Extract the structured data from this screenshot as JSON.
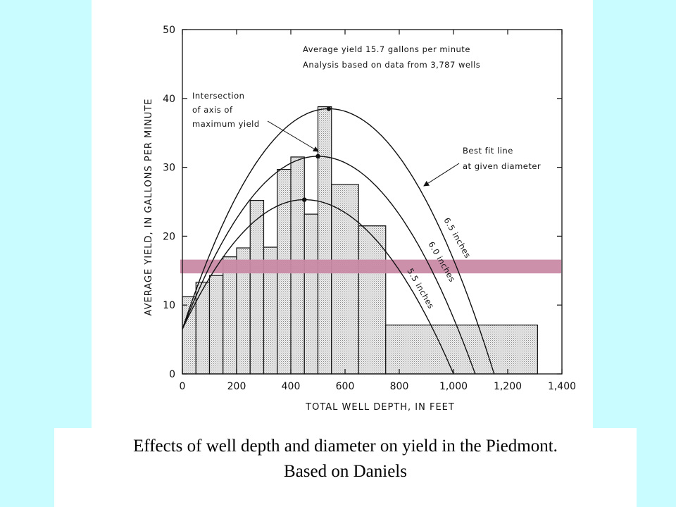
{
  "caption": {
    "line1": "Effects of well depth and diameter on yield in the Piedmont.",
    "line2": "Based on Daniels"
  },
  "colors": {
    "background": "#c8fcfe",
    "highlight_band": "#c98aa6",
    "bar_fill": "#dcdcdc"
  },
  "chart_data": {
    "type": "bar",
    "title": "",
    "xlabel": "TOTAL WELL DEPTH, IN FEET",
    "ylabel": "AVERAGE YIELD, IN GALLONS PER MINUTE",
    "xlim": [
      0,
      1400
    ],
    "ylim": [
      0,
      50
    ],
    "x_ticks": [
      "0",
      "200",
      "400",
      "600",
      "800",
      "1,000",
      "1,200",
      "1,400"
    ],
    "y_ticks": [
      "0",
      "10",
      "20",
      "30",
      "40",
      "50"
    ],
    "grid": false,
    "bars": [
      {
        "x0": 0,
        "x1": 50,
        "y": 11.2
      },
      {
        "x0": 50,
        "x1": 100,
        "y": 13.3
      },
      {
        "x0": 100,
        "x1": 150,
        "y": 14.3
      },
      {
        "x0": 150,
        "x1": 200,
        "y": 17.0
      },
      {
        "x0": 200,
        "x1": 250,
        "y": 18.3
      },
      {
        "x0": 250,
        "x1": 300,
        "y": 25.2
      },
      {
        "x0": 300,
        "x1": 350,
        "y": 18.4
      },
      {
        "x0": 350,
        "x1": 400,
        "y": 29.7
      },
      {
        "x0": 400,
        "x1": 450,
        "y": 31.5
      },
      {
        "x0": 450,
        "x1": 500,
        "y": 23.2
      },
      {
        "x0": 500,
        "x1": 550,
        "y": 38.8
      },
      {
        "x0": 550,
        "x1": 650,
        "y": 27.5
      },
      {
        "x0": 650,
        "x1": 750,
        "y": 21.5
      },
      {
        "x0": 750,
        "x1": 1310,
        "y": 7.1
      }
    ],
    "curves": [
      {
        "label": "6.5 inches",
        "peak_x": 540,
        "peak_y": 38.5,
        "start_y": 6.5,
        "end_x": 1150
      },
      {
        "label": "6.0 inches",
        "peak_x": 500,
        "peak_y": 31.6,
        "start_y": 6.5,
        "end_x": 1080
      },
      {
        "label": "5.5 inches",
        "peak_x": 450,
        "peak_y": 25.3,
        "start_y": 6.5,
        "end_x": 1000
      }
    ],
    "highlight_band": {
      "y0": 14.6,
      "y1": 16.6
    },
    "annotations": {
      "average_line1": "Average yield 15.7 gallons per minute",
      "average_line2": "Analysis based on data from 3,787 wells",
      "intersection_line1": "Intersection",
      "intersection_line2": "of axis of",
      "intersection_line3": "maximum yield",
      "bestfit_line1": "Best fit line",
      "bestfit_line2": "at given diameter"
    }
  }
}
